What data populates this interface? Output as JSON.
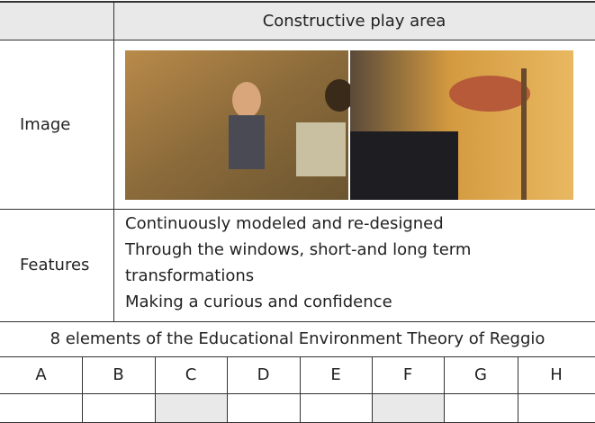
{
  "table": {
    "header": "Constructive play area",
    "image_label": "Image",
    "features_label": "Features",
    "features": [
      "Continuously modeled and re-designed",
      "Through the windows, short-and long term transformations",
      "Making a curious and confidence"
    ]
  },
  "elements": {
    "caption": "8 elements of the Educational Environment Theory of Reggio",
    "letters": [
      "A",
      "B",
      "C",
      "D",
      "E",
      "F",
      "G",
      "H"
    ]
  }
}
